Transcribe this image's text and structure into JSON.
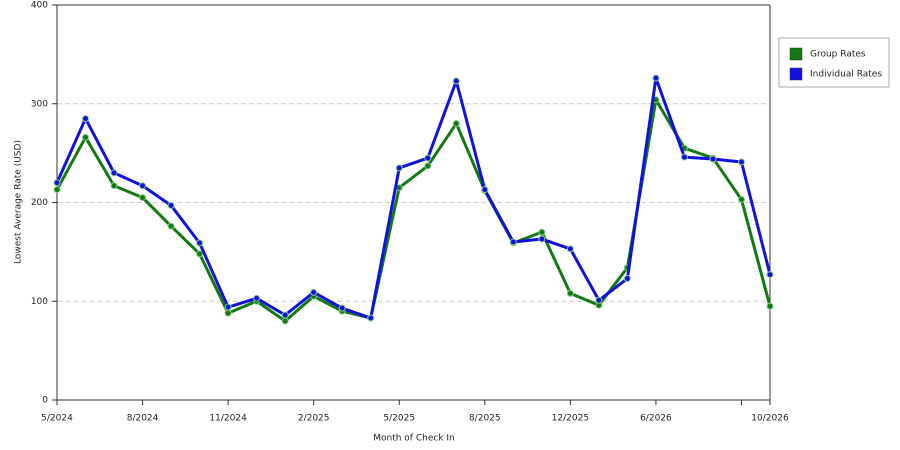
{
  "chart_data": {
    "type": "line",
    "x_label": "Month of Check In",
    "y_label": "Lowest Average Rate (USD)",
    "categories": [
      "5/2024",
      null,
      null,
      "8/2024",
      null,
      null,
      "11/2024",
      null,
      null,
      "2/2025",
      null,
      null,
      "5/2025",
      null,
      null,
      "8/2025",
      null,
      null,
      "12/2025",
      null,
      null,
      "6/2026",
      null,
      null,
      null,
      "10/2026"
    ],
    "series": [
      {
        "name": "Group Rates",
        "color": "#137a13",
        "values": [
          213,
          266,
          217,
          205,
          176,
          148,
          88,
          100,
          80,
          105,
          90,
          83,
          215,
          237,
          280,
          212,
          159,
          170,
          108,
          96,
          134,
          304,
          255,
          245,
          203,
          95
        ]
      },
      {
        "name": "Individual Rates",
        "color": "#1212dd",
        "values": [
          220,
          285,
          230,
          217,
          197,
          159,
          94,
          103,
          86,
          109,
          93,
          83,
          235,
          245,
          323,
          213,
          160,
          163,
          153,
          101,
          123,
          326,
          246,
          244,
          241,
          127
        ]
      }
    ],
    "ylim": [
      0,
      400
    ],
    "yticks": [
      0,
      100,
      200,
      300,
      400
    ],
    "grid": true,
    "legend": "right"
  }
}
